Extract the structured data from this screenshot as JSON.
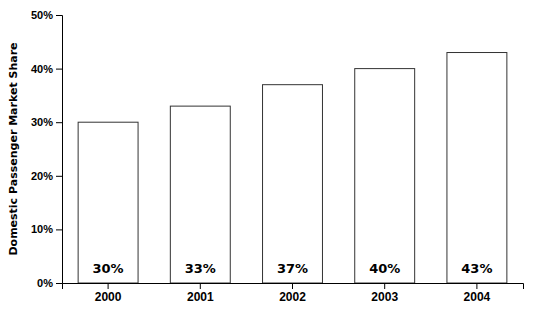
{
  "chart_data": {
    "type": "bar",
    "categories": [
      "2000",
      "2001",
      "2002",
      "2003",
      "2004"
    ],
    "values": [
      0.3,
      0.33,
      0.37,
      0.4,
      0.43
    ],
    "value_labels": [
      "30%",
      "33%",
      "37%",
      "40%",
      "43%"
    ],
    "data_labels": true,
    "color": "#ffffff",
    "ylabel": "Domestic Passenger Market Share",
    "ylim": [
      0,
      0.5
    ],
    "yticks": [
      {
        "value": 0.0,
        "label": "0%"
      },
      {
        "value": 0.1,
        "label": "10%"
      },
      {
        "value": 0.2,
        "label": "20%"
      },
      {
        "value": 0.3,
        "label": "30%"
      },
      {
        "value": 0.4,
        "label": "40%"
      },
      {
        "value": 0.5,
        "label": "50%"
      }
    ],
    "grid": false
  }
}
